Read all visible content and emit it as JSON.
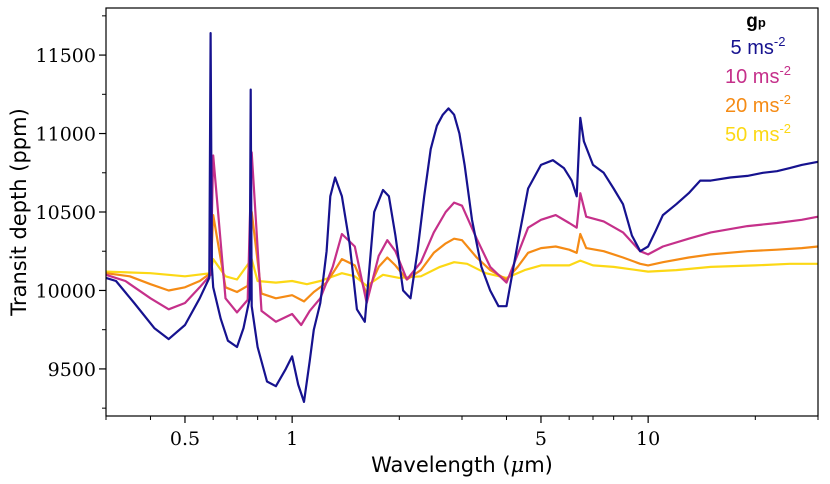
{
  "chart_data": {
    "type": "line",
    "title": "",
    "xlabel_main": "Wavelength (",
    "xlabel_mu": "μ",
    "xlabel_unit": "m)",
    "ylabel": "Transit depth (ppm)",
    "xscale": "log",
    "xlim": [
      0.3,
      30
    ],
    "ylim": [
      9200,
      11800
    ],
    "xticks": [
      {
        "value": 0.5,
        "label": "0.5"
      },
      {
        "value": 1,
        "label": "1"
      },
      {
        "value": 5,
        "label": "5"
      },
      {
        "value": 10,
        "label": "10"
      }
    ],
    "yticks": [
      {
        "value": 9500,
        "label": "9500"
      },
      {
        "value": 10000,
        "label": "10000"
      },
      {
        "value": 10500,
        "label": "10500"
      },
      {
        "value": 11000,
        "label": "11000"
      },
      {
        "value": 11500,
        "label": "11500"
      }
    ],
    "legend": {
      "title_main": "g",
      "title_sub": "p",
      "position": "top-right",
      "entries": [
        {
          "label_main": "5 ms",
          "label_sup": "-2",
          "color": "#16128f"
        },
        {
          "label_main": "10 ms",
          "label_sup": "-2",
          "color": "#c5308a"
        },
        {
          "label_main": "20 ms",
          "label_sup": "-2",
          "color": "#f58b15"
        },
        {
          "label_main": "50 ms",
          "label_sup": "-2",
          "color": "#fcd815"
        }
      ]
    },
    "series": [
      {
        "name": "5 ms-2",
        "color": "#16128f",
        "x": [
          0.3,
          0.32,
          0.36,
          0.41,
          0.45,
          0.5,
          0.55,
          0.585,
          0.59,
          0.595,
          0.6,
          0.63,
          0.66,
          0.7,
          0.73,
          0.76,
          0.765,
          0.77,
          0.8,
          0.85,
          0.9,
          0.96,
          1.0,
          1.04,
          1.08,
          1.12,
          1.15,
          1.2,
          1.25,
          1.28,
          1.32,
          1.38,
          1.45,
          1.52,
          1.6,
          1.7,
          1.8,
          1.87,
          1.95,
          2.05,
          2.15,
          2.25,
          2.35,
          2.45,
          2.55,
          2.65,
          2.75,
          2.85,
          2.95,
          3.05,
          3.2,
          3.4,
          3.6,
          3.8,
          4.0,
          4.3,
          4.6,
          5.0,
          5.4,
          5.8,
          6.1,
          6.3,
          6.45,
          6.6,
          7.0,
          7.5,
          8.0,
          8.5,
          9.0,
          9.5,
          10.0,
          10.5,
          11.0,
          12.0,
          13.0,
          14.0,
          15.0,
          17.0,
          19.0,
          21.0,
          23.0,
          25.0,
          27.0,
          30.0
        ],
        "y": [
          10080,
          10060,
          9920,
          9760,
          9690,
          9780,
          9950,
          10080,
          11640,
          10150,
          10020,
          9820,
          9680,
          9640,
          9760,
          9950,
          11280,
          9900,
          9640,
          9420,
          9390,
          9500,
          9580,
          9400,
          9290,
          9550,
          9750,
          9920,
          10250,
          10600,
          10720,
          10600,
          10300,
          9880,
          9800,
          10500,
          10640,
          10600,
          10350,
          10000,
          9950,
          10250,
          10600,
          10900,
          11050,
          11120,
          11160,
          11120,
          11000,
          10800,
          10450,
          10150,
          10000,
          9900,
          9900,
          10300,
          10650,
          10800,
          10830,
          10780,
          10700,
          10600,
          11100,
          10950,
          10800,
          10750,
          10650,
          10550,
          10350,
          10250,
          10280,
          10380,
          10480,
          10550,
          10620,
          10700,
          10700,
          10720,
          10730,
          10750,
          10760,
          10780,
          10800,
          10820
        ]
      },
      {
        "name": "10 ms-2",
        "color": "#c5308a",
        "x": [
          0.3,
          0.34,
          0.4,
          0.45,
          0.5,
          0.55,
          0.59,
          0.6,
          0.65,
          0.7,
          0.75,
          0.77,
          0.82,
          0.9,
          1.0,
          1.06,
          1.12,
          1.2,
          1.3,
          1.38,
          1.5,
          1.62,
          1.75,
          1.85,
          1.95,
          2.1,
          2.3,
          2.5,
          2.7,
          2.85,
          3.0,
          3.3,
          3.6,
          4.0,
          4.3,
          4.6,
          5.0,
          5.5,
          6.0,
          6.3,
          6.45,
          6.7,
          7.5,
          8.5,
          9.5,
          10.0,
          11.0,
          13.0,
          15.0,
          19.0,
          23.0,
          27.0,
          30.0
        ],
        "y": [
          10100,
          10060,
          9950,
          9880,
          9920,
          10020,
          10100,
          10860,
          9950,
          9860,
          9940,
          10880,
          9870,
          9800,
          9850,
          9780,
          9870,
          9950,
          10150,
          10360,
          10280,
          9920,
          10220,
          10320,
          10250,
          10070,
          10180,
          10370,
          10500,
          10560,
          10540,
          10330,
          10150,
          10050,
          10230,
          10400,
          10450,
          10480,
          10430,
          10400,
          10620,
          10470,
          10440,
          10370,
          10250,
          10230,
          10280,
          10330,
          10370,
          10410,
          10430,
          10450,
          10470
        ]
      },
      {
        "name": "20 ms-2",
        "color": "#f58b15",
        "x": [
          0.3,
          0.35,
          0.4,
          0.45,
          0.5,
          0.55,
          0.59,
          0.6,
          0.65,
          0.7,
          0.75,
          0.77,
          0.82,
          0.9,
          1.0,
          1.08,
          1.15,
          1.25,
          1.38,
          1.5,
          1.62,
          1.75,
          1.85,
          1.95,
          2.1,
          2.3,
          2.5,
          2.7,
          2.85,
          3.0,
          3.3,
          3.6,
          4.0,
          4.3,
          4.6,
          5.0,
          5.5,
          6.0,
          6.3,
          6.45,
          6.7,
          7.5,
          8.5,
          9.5,
          10.0,
          11.0,
          13.0,
          15.0,
          19.0,
          23.0,
          27.0,
          30.0
        ],
        "y": [
          10110,
          10090,
          10040,
          10000,
          10020,
          10060,
          10110,
          10480,
          10020,
          9990,
          10030,
          10500,
          9980,
          9950,
          9970,
          9930,
          9990,
          10050,
          10200,
          10160,
          9980,
          10150,
          10210,
          10160,
          10070,
          10130,
          10240,
          10300,
          10330,
          10320,
          10210,
          10130,
          10070,
          10150,
          10240,
          10270,
          10280,
          10260,
          10240,
          10360,
          10270,
          10250,
          10210,
          10170,
          10160,
          10180,
          10210,
          10230,
          10250,
          10260,
          10270,
          10280
        ]
      },
      {
        "name": "50 ms-2",
        "color": "#fcd815",
        "x": [
          0.3,
          0.4,
          0.5,
          0.59,
          0.6,
          0.65,
          0.7,
          0.77,
          0.8,
          0.9,
          1.0,
          1.1,
          1.2,
          1.38,
          1.5,
          1.62,
          1.8,
          2.0,
          2.3,
          2.6,
          2.85,
          3.1,
          3.5,
          4.0,
          4.5,
          5.0,
          6.0,
          6.45,
          7.0,
          8.0,
          10.0,
          12.0,
          15.0,
          20.0,
          25.0,
          30.0
        ],
        "y": [
          10120,
          10110,
          10090,
          10110,
          10200,
          10090,
          10070,
          10200,
          10060,
          10050,
          10060,
          10040,
          10060,
          10110,
          10090,
          10030,
          10100,
          10080,
          10090,
          10150,
          10180,
          10170,
          10110,
          10080,
          10130,
          10160,
          10160,
          10190,
          10160,
          10150,
          10120,
          10130,
          10150,
          10160,
          10170,
          10170
        ]
      }
    ]
  }
}
